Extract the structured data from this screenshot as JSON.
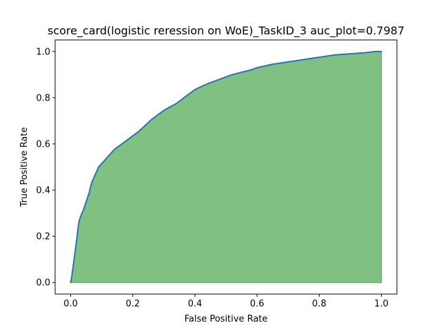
{
  "chart_data": {
    "type": "area",
    "title": "score_card(logistic reression on WoE)_TaskID_3 auc_plot=0.7987",
    "xlabel": "False Positive Rate",
    "ylabel": "True Positive Rate",
    "xlim": [
      -0.05,
      1.05
    ],
    "ylim": [
      -0.05,
      1.05
    ],
    "xticks": [
      0.0,
      0.2,
      0.4,
      0.6,
      0.8,
      1.0
    ],
    "yticks": [
      0.0,
      0.2,
      0.4,
      0.6,
      0.8,
      1.0
    ],
    "xtick_labels": [
      "0.0",
      "0.2",
      "0.4",
      "0.6",
      "0.8",
      "1.0"
    ],
    "ytick_labels": [
      "0.0",
      "0.2",
      "0.4",
      "0.6",
      "0.8",
      "1.0"
    ],
    "grid": false,
    "colors": {
      "line": "#1f77b4",
      "fill": "#80c080",
      "fill_edge": "#4f9f4f"
    },
    "series": [
      {
        "x": [
          0.0,
          0.004,
          0.008,
          0.012,
          0.016,
          0.02,
          0.024,
          0.028,
          0.032,
          0.036,
          0.04,
          0.045,
          0.05,
          0.055,
          0.06,
          0.065,
          0.07,
          0.075,
          0.08,
          0.085,
          0.09,
          0.1,
          0.11,
          0.12,
          0.13,
          0.14,
          0.15,
          0.16,
          0.18,
          0.2,
          0.22,
          0.24,
          0.26,
          0.28,
          0.3,
          0.32,
          0.34,
          0.36,
          0.38,
          0.4,
          0.42,
          0.44,
          0.46,
          0.48,
          0.5,
          0.52,
          0.55,
          0.58,
          0.6,
          0.65,
          0.7,
          0.75,
          0.8,
          0.85,
          0.9,
          0.95,
          0.98,
          1.0
        ],
        "y": [
          0.0,
          0.03,
          0.07,
          0.11,
          0.15,
          0.19,
          0.24,
          0.27,
          0.285,
          0.3,
          0.31,
          0.33,
          0.35,
          0.37,
          0.39,
          0.42,
          0.44,
          0.455,
          0.47,
          0.485,
          0.5,
          0.515,
          0.53,
          0.545,
          0.56,
          0.575,
          0.585,
          0.595,
          0.615,
          0.635,
          0.655,
          0.68,
          0.705,
          0.725,
          0.745,
          0.76,
          0.775,
          0.795,
          0.815,
          0.835,
          0.848,
          0.86,
          0.87,
          0.88,
          0.89,
          0.9,
          0.91,
          0.92,
          0.93,
          0.945,
          0.955,
          0.965,
          0.975,
          0.985,
          0.99,
          0.995,
          1.0,
          1.0
        ]
      }
    ]
  }
}
